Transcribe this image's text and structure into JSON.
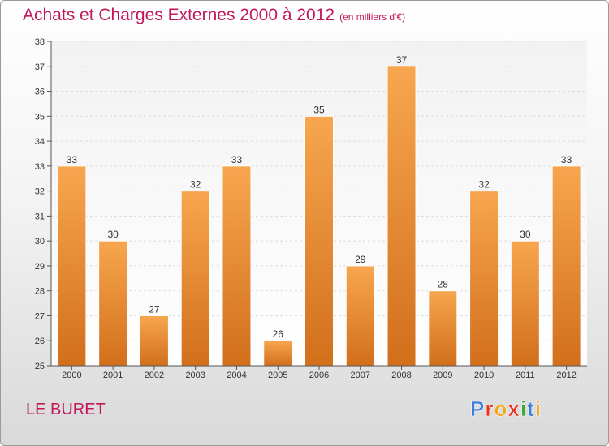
{
  "header": {
    "title": "Achats et Charges Externes 2000 à 2012",
    "unit": "(en milliers d'€)"
  },
  "footer": {
    "place": "LE BURET",
    "brand": "Proxiti"
  },
  "colors": {
    "title": "#c2185b",
    "bar_light": "#f5a24c",
    "bar_dark": "#d9761f"
  },
  "chart_data": {
    "type": "bar",
    "title": "Achats et Charges Externes 2000 à 2012",
    "categories": [
      "2000",
      "2001",
      "2002",
      "2003",
      "2004",
      "2005",
      "2006",
      "2007",
      "2008",
      "2009",
      "2010",
      "2011",
      "2012"
    ],
    "values": [
      33,
      30,
      27,
      32,
      33,
      26,
      35,
      29,
      37,
      28,
      32,
      30,
      33
    ],
    "ylim": [
      25,
      38
    ],
    "yticks": [
      25,
      26,
      27,
      28,
      29,
      30,
      31,
      32,
      33,
      34,
      35,
      36,
      37,
      38
    ],
    "grid": true,
    "xlabel": "",
    "ylabel": ""
  }
}
